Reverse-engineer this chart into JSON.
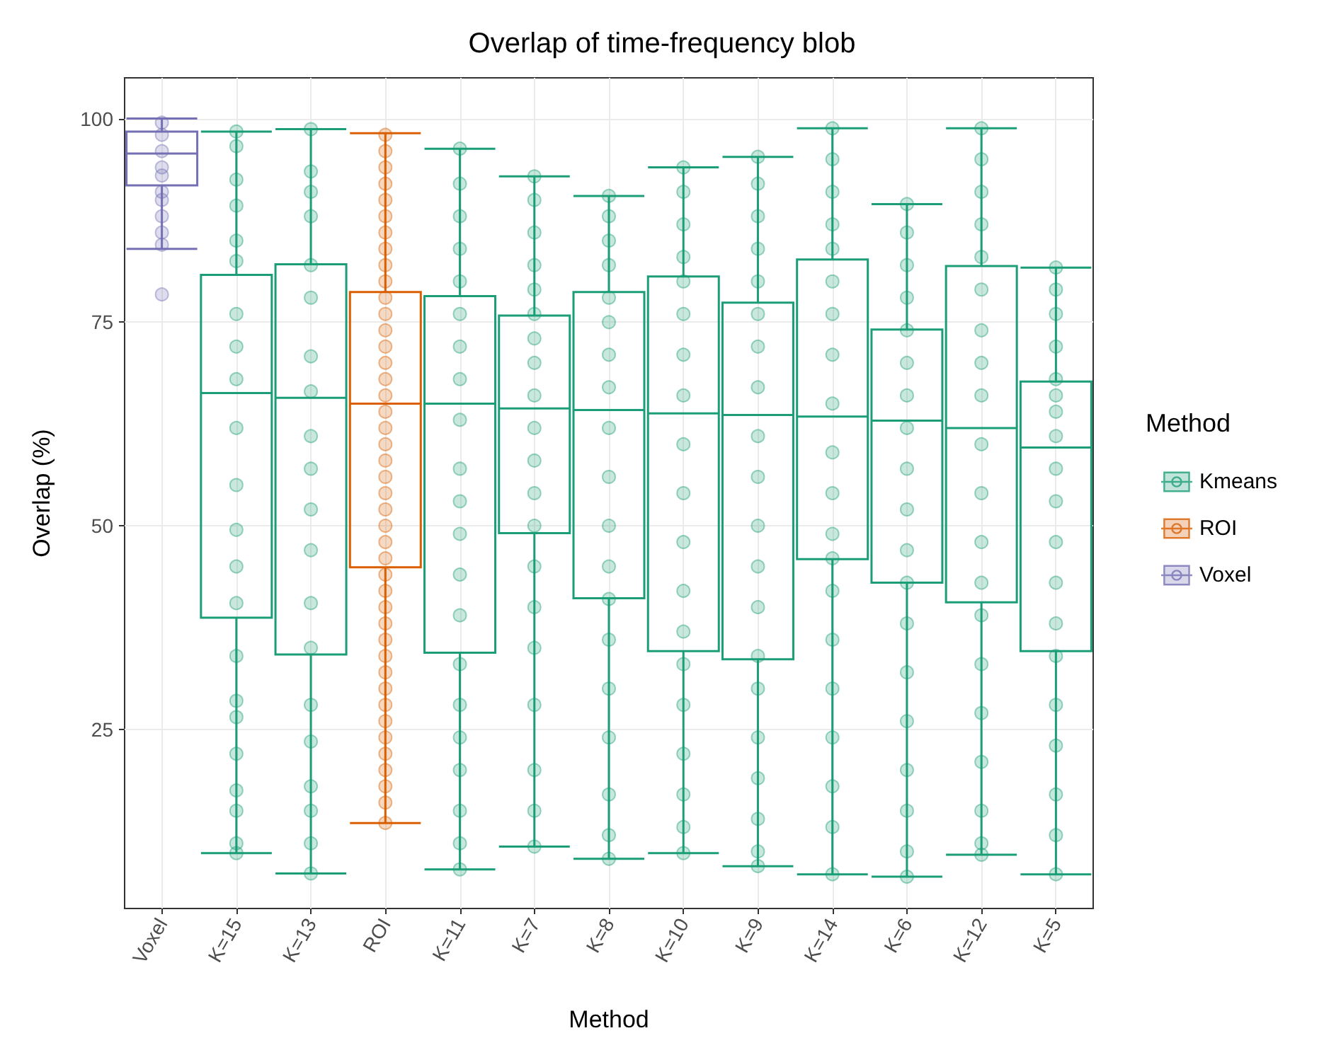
{
  "chart_data": {
    "type": "box",
    "title": "Overlap of time-frequency blob",
    "xlabel": "Method",
    "ylabel": "Overlap (%)",
    "legend_title": "Method",
    "legend": "right",
    "grid": true,
    "marker": "circle",
    "categories": [
      "Voxel",
      "K=15",
      "K=13",
      "ROI",
      "K=11",
      "K=7",
      "K=8",
      "K=10",
      "K=9",
      "K=14",
      "K=6",
      "K=12",
      "K=5"
    ],
    "ylim": [
      3,
      105
    ],
    "yticks": [
      25,
      50,
      75,
      100
    ],
    "series": [
      {
        "name": "Kmeans",
        "type": "box",
        "color": "#1b9e77",
        "boxes": [
          null,
          {
            "low": 9.8,
            "q1": 38.7,
            "median": 66.3,
            "q3": 80.8,
            "high": 98.4
          },
          {
            "low": 7.3,
            "q1": 34.2,
            "median": 65.7,
            "q3": 82.1,
            "high": 98.7
          },
          null,
          {
            "low": 7.8,
            "q1": 34.4,
            "median": 65.0,
            "q3": 78.2,
            "high": 96.3
          },
          {
            "low": 10.6,
            "q1": 49.1,
            "median": 64.4,
            "q3": 75.8,
            "high": 92.9
          },
          {
            "low": 9.1,
            "q1": 41.1,
            "median": 64.2,
            "q3": 78.7,
            "high": 90.5
          },
          {
            "low": 9.8,
            "q1": 34.6,
            "median": 63.8,
            "q3": 80.6,
            "high": 94.0
          },
          {
            "low": 8.2,
            "q1": 33.6,
            "median": 63.6,
            "q3": 77.4,
            "high": 95.3
          },
          {
            "low": 7.2,
            "q1": 45.9,
            "median": 63.4,
            "q3": 82.7,
            "high": 98.8
          },
          {
            "low": 6.9,
            "q1": 43.0,
            "median": 62.9,
            "q3": 74.1,
            "high": 89.5
          },
          {
            "low": 9.6,
            "q1": 40.6,
            "median": 62.0,
            "q3": 81.9,
            "high": 98.8
          },
          {
            "low": 7.2,
            "q1": 34.6,
            "median": 59.6,
            "q3": 67.7,
            "high": 81.7
          }
        ]
      },
      {
        "name": "ROI",
        "type": "box",
        "color": "#d95f02",
        "boxes": [
          null,
          null,
          null,
          {
            "low": 13.5,
            "q1": 44.9,
            "median": 65.0,
            "q3": 78.7,
            "high": 98.2
          },
          null,
          null,
          null,
          null,
          null,
          null,
          null,
          null,
          null
        ]
      },
      {
        "name": "Voxel",
        "type": "box",
        "color": "#7570b3",
        "boxes": [
          {
            "low": 84.0,
            "q1": 91.8,
            "median": 95.7,
            "q3": 98.4,
            "high": 100,
            "outliers": [
              78.4
            ]
          },
          null,
          null,
          null,
          null,
          null,
          null,
          null,
          null,
          null,
          null,
          null,
          null
        ]
      },
      {
        "type": "scatter",
        "color": "#7570b3",
        "x": [
          "Voxel",
          "Voxel",
          "Voxel",
          "Voxel",
          "Voxel",
          "Voxel",
          "Voxel",
          "Voxel",
          "Voxel",
          "Voxel"
        ],
        "values": [
          99.5,
          98,
          96,
          94,
          93,
          91,
          90,
          88,
          86,
          84.5
        ]
      },
      {
        "type": "scatter",
        "color": "#1b9e77",
        "x": [
          "K=15",
          "K=15",
          "K=15",
          "K=15",
          "K=15",
          "K=15",
          "K=15",
          "K=15",
          "K=15",
          "K=15",
          "K=15",
          "K=15",
          "K=15",
          "K=15",
          "K=15",
          "K=15",
          "K=15",
          "K=15",
          "K=15",
          "K=15",
          "K=15",
          "K=15"
        ],
        "values": [
          98.4,
          96.6,
          92.5,
          89.3,
          85,
          82.5,
          76,
          72,
          68,
          62,
          55,
          49.5,
          45,
          40.5,
          34,
          28.5,
          26.5,
          22,
          17.5,
          15,
          11,
          9.8
        ]
      },
      {
        "type": "scatter",
        "color": "#1b9e77",
        "x": [
          "K=13",
          "K=13",
          "K=13",
          "K=13",
          "K=13",
          "K=13",
          "K=13",
          "K=13",
          "K=13",
          "K=13",
          "K=13",
          "K=13",
          "K=13",
          "K=13",
          "K=13",
          "K=13",
          "K=13",
          "K=13",
          "K=13",
          "K=13"
        ],
        "values": [
          98.7,
          93.5,
          91,
          88,
          82,
          78,
          70.8,
          66.5,
          61,
          57,
          52,
          47,
          40.5,
          35,
          28,
          23.5,
          18,
          15,
          11,
          7.3
        ]
      },
      {
        "type": "scatter",
        "color": "#d95f02",
        "x": [
          "ROI",
          "ROI",
          "ROI",
          "ROI",
          "ROI",
          "ROI",
          "ROI",
          "ROI",
          "ROI",
          "ROI",
          "ROI",
          "ROI",
          "ROI",
          "ROI",
          "ROI",
          "ROI",
          "ROI",
          "ROI",
          "ROI",
          "ROI",
          "ROI",
          "ROI",
          "ROI",
          "ROI",
          "ROI",
          "ROI",
          "ROI",
          "ROI",
          "ROI",
          "ROI",
          "ROI",
          "ROI",
          "ROI",
          "ROI",
          "ROI",
          "ROI",
          "ROI",
          "ROI",
          "ROI",
          "ROI",
          "ROI",
          "ROI",
          "ROI"
        ],
        "values": [
          98,
          96,
          94,
          92,
          90,
          88,
          86,
          84,
          82,
          80,
          78,
          76,
          74,
          72,
          70,
          68,
          66,
          64,
          62,
          60,
          58,
          56,
          54,
          52,
          50,
          48,
          46,
          44,
          42,
          40,
          38,
          36,
          34,
          32,
          30,
          28,
          26,
          24,
          22,
          20,
          18,
          16,
          13.5
        ]
      },
      {
        "type": "scatter",
        "color": "#1b9e77",
        "x": [
          "K=11",
          "K=11",
          "K=11",
          "K=11",
          "K=11",
          "K=11",
          "K=11",
          "K=11",
          "K=11",
          "K=11",
          "K=11",
          "K=11",
          "K=11",
          "K=11",
          "K=11",
          "K=11",
          "K=11",
          "K=11",
          "K=11",
          "K=11",
          "K=11"
        ],
        "values": [
          96.3,
          92,
          88,
          84,
          80,
          76,
          72,
          68,
          63,
          57,
          53,
          49,
          44,
          39,
          33,
          28,
          24,
          20,
          15,
          11,
          7.8
        ]
      },
      {
        "type": "scatter",
        "color": "#1b9e77",
        "x": [
          "K=7",
          "K=7",
          "K=7",
          "K=7",
          "K=7",
          "K=7",
          "K=7",
          "K=7",
          "K=7",
          "K=7",
          "K=7",
          "K=7",
          "K=7",
          "K=7",
          "K=7",
          "K=7",
          "K=7",
          "K=7",
          "K=7",
          "K=7"
        ],
        "values": [
          92.9,
          90,
          86,
          82,
          79,
          76,
          73,
          70,
          66,
          62,
          58,
          54,
          50,
          45,
          40,
          35,
          28,
          20,
          15,
          10.6
        ]
      },
      {
        "type": "scatter",
        "color": "#1b9e77",
        "x": [
          "K=8",
          "K=8",
          "K=8",
          "K=8",
          "K=8",
          "K=8",
          "K=8",
          "K=8",
          "K=8",
          "K=8",
          "K=8",
          "K=8",
          "K=8",
          "K=8",
          "K=8",
          "K=8",
          "K=8",
          "K=8",
          "K=8"
        ],
        "values": [
          90.5,
          88,
          85,
          82,
          78,
          75,
          71,
          67,
          62,
          56,
          50,
          45,
          41,
          36,
          30,
          24,
          17,
          12,
          9.1
        ]
      },
      {
        "type": "scatter",
        "color": "#1b9e77",
        "x": [
          "K=10",
          "K=10",
          "K=10",
          "K=10",
          "K=10",
          "K=10",
          "K=10",
          "K=10",
          "K=10",
          "K=10",
          "K=10",
          "K=10",
          "K=10",
          "K=10",
          "K=10",
          "K=10",
          "K=10",
          "K=10",
          "K=10"
        ],
        "values": [
          94,
          91,
          87,
          83,
          80,
          76,
          71,
          66,
          60,
          54,
          48,
          42,
          37,
          33,
          28,
          22,
          17,
          13,
          9.8
        ]
      },
      {
        "type": "scatter",
        "color": "#1b9e77",
        "x": [
          "K=9",
          "K=9",
          "K=9",
          "K=9",
          "K=9",
          "K=9",
          "K=9",
          "K=9",
          "K=9",
          "K=9",
          "K=9",
          "K=9",
          "K=9",
          "K=9",
          "K=9",
          "K=9",
          "K=9",
          "K=9",
          "K=9",
          "K=9"
        ],
        "values": [
          95.3,
          92,
          88,
          84,
          80,
          76,
          72,
          67,
          61,
          56,
          50,
          45,
          40,
          34,
          30,
          24,
          19,
          14,
          10,
          8.2
        ]
      },
      {
        "type": "scatter",
        "color": "#1b9e77",
        "x": [
          "K=14",
          "K=14",
          "K=14",
          "K=14",
          "K=14",
          "K=14",
          "K=14",
          "K=14",
          "K=14",
          "K=14",
          "K=14",
          "K=14",
          "K=14",
          "K=14",
          "K=14",
          "K=14",
          "K=14",
          "K=14",
          "K=14",
          "K=14"
        ],
        "values": [
          98.8,
          95,
          91,
          87,
          84,
          80,
          76,
          71,
          65,
          59,
          54,
          49,
          46,
          42,
          36,
          30,
          24,
          18,
          13,
          7.2
        ]
      },
      {
        "type": "scatter",
        "color": "#1b9e77",
        "x": [
          "K=6",
          "K=6",
          "K=6",
          "K=6",
          "K=6",
          "K=6",
          "K=6",
          "K=6",
          "K=6",
          "K=6",
          "K=6",
          "K=6",
          "K=6",
          "K=6",
          "K=6",
          "K=6",
          "K=6",
          "K=6",
          "K=6"
        ],
        "values": [
          89.5,
          86,
          82,
          78,
          74,
          70,
          66,
          62,
          57,
          52,
          47,
          43,
          38,
          32,
          26,
          20,
          15,
          10,
          6.9
        ]
      },
      {
        "type": "scatter",
        "color": "#1b9e77",
        "x": [
          "K=12",
          "K=12",
          "K=12",
          "K=12",
          "K=12",
          "K=12",
          "K=12",
          "K=12",
          "K=12",
          "K=12",
          "K=12",
          "K=12",
          "K=12",
          "K=12",
          "K=12",
          "K=12",
          "K=12",
          "K=12",
          "K=12",
          "K=12"
        ],
        "values": [
          98.8,
          95,
          91,
          87,
          83,
          79,
          74,
          70,
          66,
          60,
          54,
          48,
          43,
          39,
          33,
          27,
          21,
          15,
          11,
          9.6
        ]
      },
      {
        "type": "scatter",
        "color": "#1b9e77",
        "x": [
          "K=5",
          "K=5",
          "K=5",
          "K=5",
          "K=5",
          "K=5",
          "K=5",
          "K=5",
          "K=5",
          "K=5",
          "K=5",
          "K=5",
          "K=5",
          "K=5",
          "K=5",
          "K=5",
          "K=5",
          "K=5",
          "K=5"
        ],
        "values": [
          81.7,
          79,
          76,
          72,
          68,
          66,
          64,
          61,
          57,
          53,
          48,
          43,
          38,
          34,
          28,
          23,
          17,
          12,
          7.2
        ]
      }
    ]
  }
}
